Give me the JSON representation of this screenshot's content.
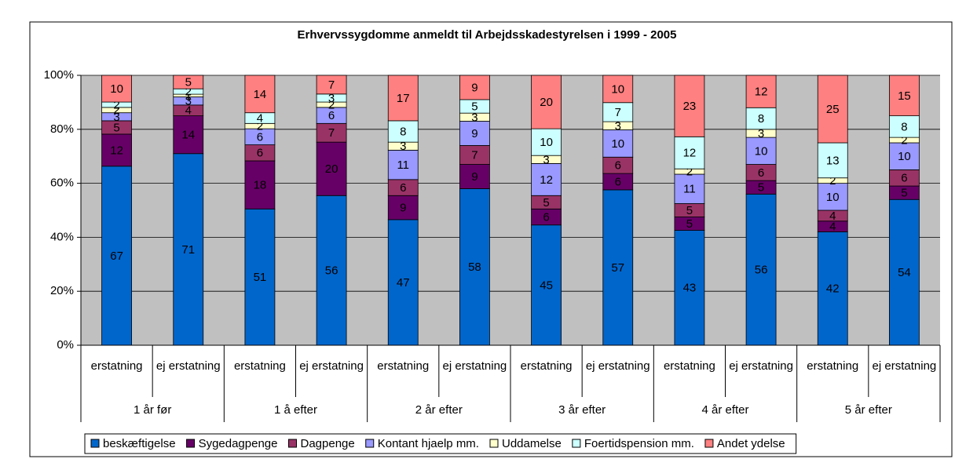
{
  "chart_data": {
    "type": "stacked_percent_bar",
    "title": "Erhvervssygdomme  anmeldt til Arbejdsskadestyrelsen i 1999 - 2005",
    "categories": [
      "erstatning",
      "ej erstatning",
      "erstatning",
      "ej erstatning",
      "erstatning",
      "ej erstatning",
      "erstatning",
      "ej erstatning",
      "erstatning",
      "ej erstatning",
      "erstatning",
      "ej erstatning"
    ],
    "groups": [
      "1 år før",
      "1 å efter",
      "2 år efter",
      "3 år efter",
      "4 år efter",
      "5 år efter"
    ],
    "series": [
      {
        "name": "beskæftigelse",
        "color": "#0066cc",
        "values": [
          67,
          71,
          51,
          56,
          47,
          58,
          45,
          57,
          43,
          56,
          42,
          54
        ]
      },
      {
        "name": "Sygedagpenge",
        "color": "#660066",
        "values": [
          12,
          14,
          18,
          20,
          9,
          9,
          6,
          6,
          5,
          5,
          4,
          5
        ]
      },
      {
        "name": "Dagpenge",
        "color": "#993366",
        "values": [
          5,
          4,
          6,
          7,
          6,
          7,
          5,
          6,
          5,
          6,
          4,
          6
        ]
      },
      {
        "name": "Kontant hjaelp mm.",
        "color": "#9999ff",
        "values": [
          3,
          3,
          6,
          6,
          11,
          9,
          12,
          10,
          11,
          10,
          10,
          10
        ]
      },
      {
        "name": "Uddamelse",
        "color": "#ffffcc",
        "values": [
          2,
          1,
          2,
          2,
          3,
          3,
          3,
          3,
          2,
          3,
          2,
          2
        ]
      },
      {
        "name": "Foertidspension mm.",
        "color": "#ccffff",
        "values": [
          2,
          2,
          4,
          3,
          8,
          5,
          10,
          7,
          12,
          8,
          13,
          8
        ]
      },
      {
        "name": "Andet ydelse",
        "color": "#ff8080",
        "values": [
          10,
          5,
          14,
          7,
          17,
          9,
          20,
          10,
          23,
          12,
          25,
          15
        ]
      }
    ],
    "ylim": [
      0,
      100
    ],
    "yticks": [
      {
        "value": 0,
        "label": "0%"
      },
      {
        "value": 20,
        "label": "20%"
      },
      {
        "value": 40,
        "label": "40%"
      },
      {
        "value": 60,
        "label": "60%"
      },
      {
        "value": 80,
        "label": "80%"
      },
      {
        "value": 100,
        "label": "100%"
      }
    ],
    "grid": true,
    "legend": "bottom",
    "plot_background": "#c0c0c0"
  }
}
